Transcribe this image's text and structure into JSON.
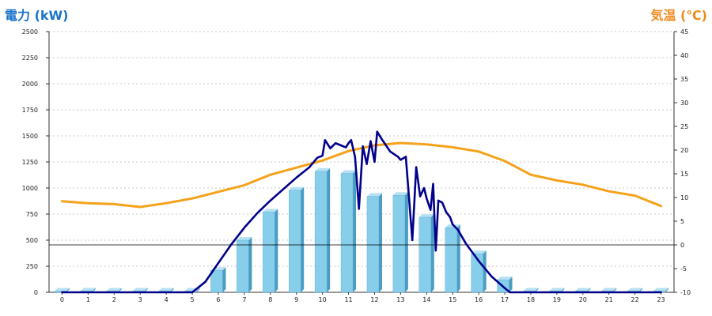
{
  "chart_data": {
    "type": "bar",
    "title_left": "電力 (kW)",
    "title_right": "気温 (℃)",
    "categories": [
      "0",
      "1",
      "2",
      "3",
      "4",
      "5",
      "6",
      "7",
      "8",
      "9",
      "10",
      "11",
      "12",
      "13",
      "14",
      "15",
      "16",
      "17",
      "18",
      "19",
      "20",
      "21",
      "22",
      "23"
    ],
    "y_left": {
      "label": "電力 (kW)",
      "min": 0,
      "max": 2500,
      "ticks": [
        0,
        250,
        500,
        750,
        1000,
        1250,
        1500,
        1750,
        2000,
        2250,
        2500
      ]
    },
    "y_right": {
      "label": "気温 (℃)",
      "min": -10,
      "max": 45,
      "ticks": [
        -10,
        -5,
        0,
        5,
        10,
        15,
        20,
        25,
        30,
        35,
        40,
        45
      ]
    },
    "grid": "horizontal dashed",
    "series": [
      {
        "type": "bar",
        "axis": "left",
        "color": "#87ceeb",
        "values": [
          0,
          0,
          0,
          0,
          0,
          0,
          210,
          500,
          770,
          980,
          1160,
          1140,
          920,
          930,
          720,
          620,
          370,
          120,
          0,
          0,
          0,
          0,
          0,
          0
        ]
      },
      {
        "type": "line",
        "axis": "left",
        "color": "#00008b",
        "x": [
          0,
          1,
          2,
          3,
          4,
          5,
          5.5,
          6,
          6.5,
          7,
          7.5,
          8,
          8.5,
          9,
          9.5,
          9.8,
          10,
          10.1,
          10.3,
          10.5,
          10.7,
          10.9,
          11,
          11.1,
          11.25,
          11.4,
          11.55,
          11.7,
          11.85,
          12,
          12.1,
          12.3,
          12.6,
          12.9,
          13,
          13.2,
          13.45,
          13.6,
          13.75,
          13.9,
          14,
          14.15,
          14.25,
          14.35,
          14.45,
          14.6,
          14.75,
          14.9,
          15,
          15.2,
          15.5,
          16,
          16.5,
          17,
          17.2,
          17.5,
          18,
          19,
          20,
          21,
          22,
          23
        ],
        "values": [
          0,
          0,
          0,
          0,
          0,
          0,
          100,
          280,
          460,
          620,
          760,
          880,
          990,
          1100,
          1200,
          1290,
          1310,
          1460,
          1380,
          1430,
          1410,
          1390,
          1430,
          1460,
          1300,
          800,
          1400,
          1230,
          1450,
          1250,
          1540,
          1460,
          1350,
          1300,
          1270,
          1300,
          500,
          1200,
          920,
          1000,
          900,
          790,
          1040,
          400,
          880,
          860,
          770,
          720,
          650,
          600,
          470,
          300,
          150,
          40,
          0,
          0,
          0,
          0,
          0,
          0,
          0,
          0
        ]
      },
      {
        "type": "line",
        "axis": "right",
        "color": "#f5a21b",
        "values": [
          9.2,
          8.8,
          8.6,
          8.0,
          8.8,
          9.8,
          11.2,
          12.6,
          14.8,
          16.3,
          17.8,
          19.8,
          21.0,
          21.5,
          21.2,
          20.6,
          19.7,
          17.7,
          14.8,
          13.6,
          12.7,
          11.3,
          10.4,
          8.2
        ]
      },
      {
        "type": "reference",
        "axis": "right",
        "color": "#000000",
        "value": 0
      }
    ]
  }
}
